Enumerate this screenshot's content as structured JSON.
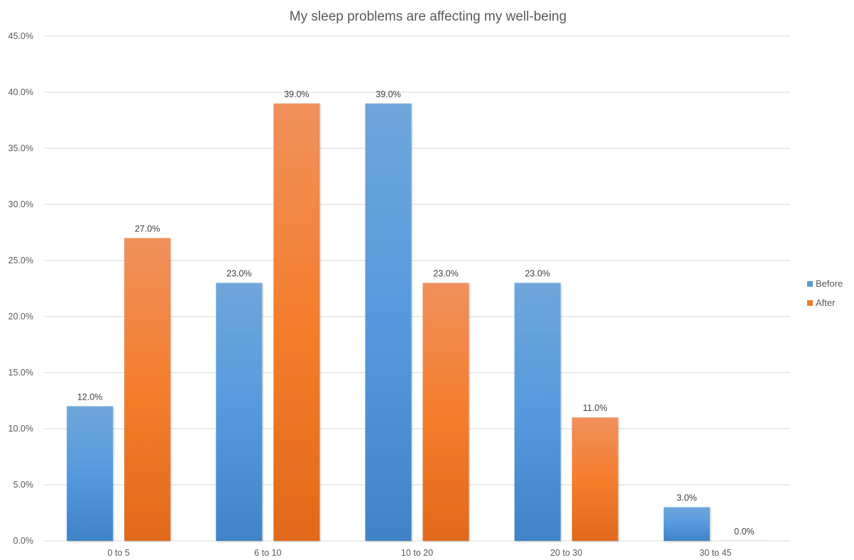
{
  "chart_data": {
    "type": "bar",
    "title": "My sleep problems are affecting my well-being",
    "xlabel": "",
    "ylabel": "",
    "categories": [
      "0 to 5",
      "6 to 10",
      "10 to 20",
      "20 to 30",
      "30 to 45"
    ],
    "series": [
      {
        "name": "Before",
        "color": "#5b9bd5",
        "values": [
          12.0,
          23.0,
          39.0,
          23.0,
          3.0
        ],
        "labels": [
          "12.0%",
          "23.0%",
          "39.0%",
          "23.0%",
          "3.0%"
        ]
      },
      {
        "name": "After",
        "color": "#ed7d31",
        "values": [
          27.0,
          39.0,
          23.0,
          11.0,
          0.0
        ],
        "labels": [
          "27.0%",
          "39.0%",
          "23.0%",
          "11.0%",
          "0.0%"
        ]
      }
    ],
    "ylim": [
      0,
      45
    ],
    "yticks": [
      0,
      5,
      10,
      15,
      20,
      25,
      30,
      35,
      40,
      45
    ],
    "ytick_labels": [
      "0.0%",
      "5.0%",
      "10.0%",
      "15.0%",
      "20.0%",
      "25.0%",
      "30.0%",
      "35.0%",
      "40.0%",
      "45.0%"
    ],
    "grid": true,
    "legend_position": "right"
  }
}
